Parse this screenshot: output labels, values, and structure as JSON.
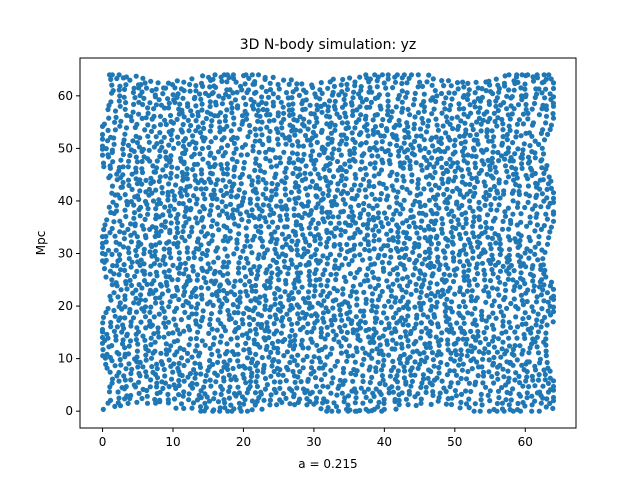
{
  "chart_data": {
    "type": "scatter",
    "title": "3D N-body simulation: yz",
    "xlabel": "a = 0.215",
    "ylabel": "Mpc",
    "xlim": [
      -3.2,
      67.2
    ],
    "ylim": [
      -3.2,
      67.2
    ],
    "xticks": [
      0,
      10,
      20,
      30,
      40,
      50,
      60
    ],
    "yticks": [
      0,
      10,
      20,
      30,
      40,
      50,
      60
    ],
    "grid": false,
    "legend": "none",
    "series": [
      {
        "marker": "circle",
        "color": "#1f77b4",
        "distribution": "approximately 4000 particles with uniform coverage of the domain y in [0, 64] and z in [0, 64], arranged in wavy filament-like strands with small voids",
        "count": 4000,
        "range": {
          "x": [
            0,
            64
          ],
          "y": [
            0,
            64
          ]
        }
      }
    ]
  }
}
